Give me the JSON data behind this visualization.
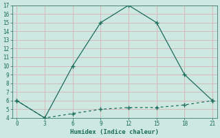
{
  "line1_x": [
    0,
    3,
    6,
    9,
    12,
    15,
    18,
    21
  ],
  "line1_y": [
    6,
    4,
    10,
    15,
    17,
    15,
    9,
    6
  ],
  "line2_x": [
    0,
    3,
    6,
    9,
    12,
    15,
    18,
    21
  ],
  "line2_y": [
    6,
    4,
    4.5,
    5.0,
    5.2,
    5.2,
    5.5,
    6
  ],
  "line_color": "#1a6b5a",
  "bg_color": "#cce8e0",
  "grid_color": "#d4b8b8",
  "xlabel": "Humidex (Indice chaleur)",
  "xlim": [
    -0.5,
    21.5
  ],
  "ylim": [
    4,
    17
  ],
  "xticks": [
    0,
    3,
    6,
    9,
    12,
    15,
    18,
    21
  ],
  "yticks": [
    4,
    5,
    6,
    7,
    8,
    9,
    10,
    11,
    12,
    13,
    14,
    15,
    16,
    17
  ],
  "marker": "+",
  "marker_size": 5,
  "linewidth": 0.9
}
